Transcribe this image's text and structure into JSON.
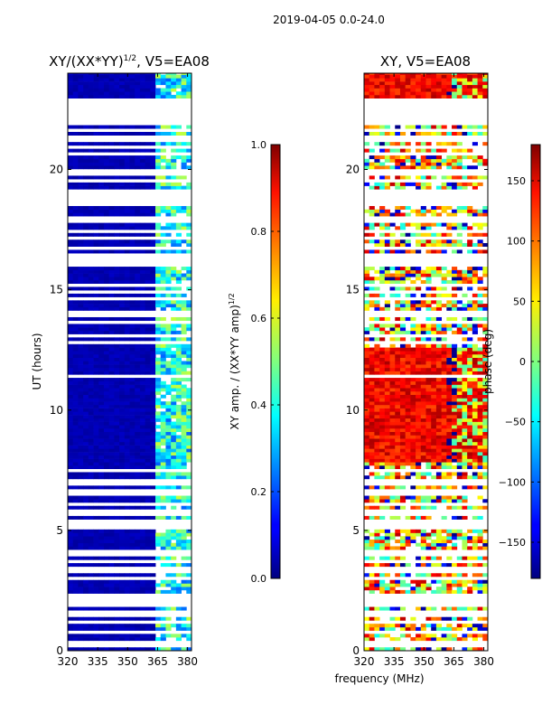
{
  "suptitle": "2019-04-05 0.0-24.0",
  "chart_data": [
    {
      "type": "heatmap",
      "title_main": "XY/(XX*YY)",
      "title_exp": "1/2",
      "title_tail": ", V5=EA08",
      "xlabel": "",
      "ylabel": "UT (hours)",
      "xlim": [
        320,
        382
      ],
      "ylim": [
        0,
        24
      ],
      "xticks": [
        320,
        335,
        350,
        365,
        380
      ],
      "yticks": [
        0,
        5,
        10,
        15,
        20
      ],
      "colormap": "jet",
      "value_range": [
        0.0,
        1.0
      ],
      "description": "Normalized XY amplitude vs frequency and UT; mostly low (~0.05) with higher values (0.3-0.5) above ~362 MHz"
    },
    {
      "type": "heatmap",
      "title_main": "XY, V5=EA08",
      "xlabel": "frequency (MHz)",
      "ylabel": "",
      "xlim": [
        320,
        382
      ],
      "ylim": [
        0,
        24
      ],
      "xticks": [
        320,
        335,
        350,
        365,
        380
      ],
      "yticks": [
        0,
        5,
        10,
        15,
        20
      ],
      "colormap": "jet",
      "value_range": [
        -180,
        180
      ],
      "description": "XY phase vs frequency and UT; mostly ~+100 to +150 deg in 7.5-12.5 h and near top, mixed elsewhere"
    }
  ],
  "colorbars": [
    {
      "label_main": "XY amp. / (XX*YY amp)",
      "label_exp": "1/2",
      "range": [
        0.0,
        1.0
      ],
      "ticks": [
        "0.0",
        "0.2",
        "0.4",
        "0.6",
        "0.8",
        "1.0"
      ],
      "tick_values": [
        0.0,
        0.2,
        0.4,
        0.6,
        0.8,
        1.0
      ]
    },
    {
      "label_main": "phase (deg)",
      "range": [
        -180,
        180
      ],
      "ticks": [
        "−150",
        "−100",
        "−50",
        "0",
        "50",
        "100",
        "150"
      ],
      "tick_values": [
        -150,
        -100,
        -50,
        0,
        50,
        100,
        150
      ]
    }
  ],
  "colors": {
    "axis": "#000000",
    "background": "#ffffff"
  }
}
